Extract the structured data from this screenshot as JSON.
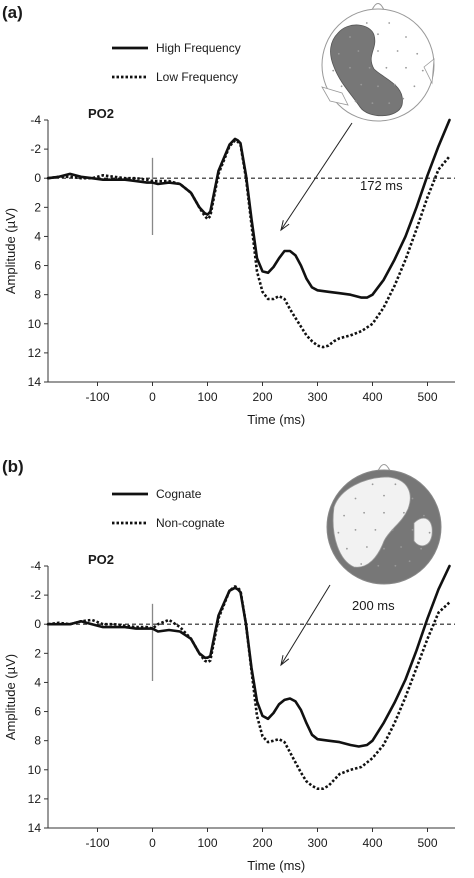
{
  "chart_data": [
    {
      "panel_label": "(a)",
      "type": "line",
      "title": "PO2",
      "xlabel": "Time (ms)",
      "ylabel": "Amplitude (µV)",
      "xlim": [
        -190,
        550
      ],
      "ylim": [
        -4,
        14
      ],
      "y_inverted": true,
      "x_ticks": [
        -100,
        0,
        100,
        200,
        300,
        400,
        500
      ],
      "y_ticks": [
        -4,
        -2,
        0,
        2,
        4,
        6,
        8,
        10,
        12,
        14
      ],
      "legend_position": "top-left",
      "legend": {
        "solid": "High Frequency",
        "dotted": "Low Frequency"
      },
      "annotation": "172 ms",
      "series": [
        {
          "name": "High Frequency",
          "style": "solid",
          "x": [
            -190,
            -170,
            -150,
            -130,
            -110,
            -90,
            -70,
            -50,
            -30,
            -10,
            0,
            10,
            30,
            50,
            70,
            85,
            95,
            100,
            105,
            120,
            140,
            150,
            155,
            160,
            170,
            180,
            190,
            200,
            210,
            220,
            230,
            240,
            250,
            260,
            270,
            280,
            290,
            300,
            320,
            340,
            360,
            380,
            390,
            400,
            420,
            440,
            460,
            480,
            500,
            520,
            540
          ],
          "y": [
            0.0,
            -0.1,
            -0.3,
            -0.1,
            0.0,
            0.1,
            0.1,
            0.1,
            0.2,
            0.3,
            0.3,
            0.4,
            0.3,
            0.4,
            1.0,
            2.0,
            2.4,
            2.5,
            2.3,
            -0.5,
            -2.3,
            -2.7,
            -2.6,
            -2.4,
            -0.2,
            2.8,
            5.5,
            6.4,
            6.5,
            6.1,
            5.5,
            5.0,
            5.0,
            5.3,
            6.0,
            6.9,
            7.5,
            7.7,
            7.8,
            7.9,
            8.0,
            8.2,
            8.2,
            8.0,
            7.0,
            5.6,
            4.0,
            2.0,
            -0.2,
            -2.2,
            -4.0
          ]
        },
        {
          "name": "Low Frequency",
          "style": "dotted",
          "x": [
            -190,
            -170,
            -150,
            -130,
            -110,
            -90,
            -70,
            -50,
            -30,
            -10,
            0,
            10,
            30,
            50,
            70,
            85,
            95,
            100,
            105,
            120,
            140,
            150,
            155,
            160,
            170,
            180,
            190,
            200,
            210,
            220,
            230,
            240,
            250,
            260,
            270,
            280,
            290,
            300,
            310,
            320,
            330,
            340,
            360,
            380,
            400,
            420,
            440,
            460,
            480,
            500,
            520,
            540
          ],
          "y": [
            0.0,
            -0.1,
            -0.1,
            0.0,
            0.0,
            -0.2,
            -0.1,
            0.0,
            0.0,
            0.1,
            0.2,
            0.2,
            0.2,
            0.4,
            1.0,
            2.0,
            2.6,
            2.8,
            2.6,
            -0.3,
            -2.2,
            -2.6,
            -2.5,
            -2.3,
            0.0,
            3.2,
            6.4,
            7.8,
            8.3,
            8.3,
            8.1,
            8.3,
            9.0,
            9.6,
            10.2,
            10.8,
            11.2,
            11.5,
            11.6,
            11.5,
            11.2,
            11.0,
            10.8,
            10.5,
            10.0,
            8.9,
            7.4,
            5.6,
            3.5,
            1.3,
            -0.6,
            -1.5
          ]
        }
      ]
    },
    {
      "panel_label": "(b)",
      "type": "line",
      "title": "PO2",
      "xlabel": "Time (ms)",
      "ylabel": "Amplitude (µV)",
      "xlim": [
        -190,
        550
      ],
      "ylim": [
        -4,
        14
      ],
      "y_inverted": true,
      "x_ticks": [
        -100,
        0,
        100,
        200,
        300,
        400,
        500
      ],
      "y_ticks": [
        -4,
        -2,
        0,
        2,
        4,
        6,
        8,
        10,
        12,
        14
      ],
      "legend_position": "top-left",
      "legend": {
        "solid": "Cognate",
        "dotted": "Non-cognate"
      },
      "annotation": "200 ms",
      "series": [
        {
          "name": "Cognate",
          "style": "solid",
          "x": [
            -190,
            -170,
            -150,
            -130,
            -110,
            -90,
            -70,
            -50,
            -30,
            -10,
            0,
            10,
            30,
            50,
            70,
            85,
            95,
            100,
            105,
            120,
            140,
            150,
            155,
            160,
            170,
            180,
            190,
            200,
            210,
            220,
            230,
            240,
            250,
            260,
            270,
            280,
            290,
            300,
            320,
            340,
            360,
            375,
            390,
            400,
            420,
            440,
            460,
            480,
            500,
            520,
            540
          ],
          "y": [
            0.0,
            0.0,
            0.0,
            -0.2,
            0.0,
            0.2,
            0.2,
            0.2,
            0.3,
            0.3,
            0.3,
            0.5,
            0.4,
            0.5,
            1.0,
            2.0,
            2.3,
            2.3,
            2.2,
            -0.6,
            -2.3,
            -2.5,
            -2.4,
            -2.2,
            0.0,
            3.0,
            5.3,
            6.3,
            6.5,
            6.1,
            5.5,
            5.2,
            5.1,
            5.3,
            5.9,
            6.8,
            7.6,
            7.9,
            8.0,
            8.1,
            8.3,
            8.4,
            8.3,
            8.0,
            6.8,
            5.4,
            3.8,
            1.8,
            -0.4,
            -2.4,
            -4.0
          ]
        },
        {
          "name": "Non-cognate",
          "style": "dotted",
          "x": [
            -190,
            -170,
            -150,
            -130,
            -110,
            -90,
            -70,
            -50,
            -30,
            -10,
            0,
            10,
            30,
            50,
            70,
            85,
            95,
            100,
            105,
            120,
            140,
            150,
            155,
            160,
            170,
            180,
            190,
            200,
            210,
            220,
            230,
            240,
            250,
            260,
            270,
            280,
            290,
            300,
            310,
            320,
            330,
            340,
            360,
            380,
            400,
            420,
            440,
            460,
            480,
            500,
            520,
            540
          ],
          "y": [
            0.0,
            -0.1,
            0.0,
            -0.2,
            -0.3,
            0.0,
            0.0,
            0.1,
            0.2,
            0.2,
            0.3,
            0.0,
            -0.3,
            0.2,
            1.0,
            2.0,
            2.5,
            2.6,
            2.5,
            -0.4,
            -2.3,
            -2.6,
            -2.5,
            -2.3,
            0.0,
            3.2,
            6.3,
            7.7,
            8.1,
            8.0,
            7.9,
            8.1,
            8.8,
            9.5,
            10.2,
            10.8,
            11.1,
            11.3,
            11.3,
            11.1,
            10.7,
            10.3,
            10.0,
            9.8,
            9.2,
            8.3,
            6.8,
            5.0,
            3.0,
            1.0,
            -0.8,
            -1.5
          ]
        }
      ]
    }
  ]
}
